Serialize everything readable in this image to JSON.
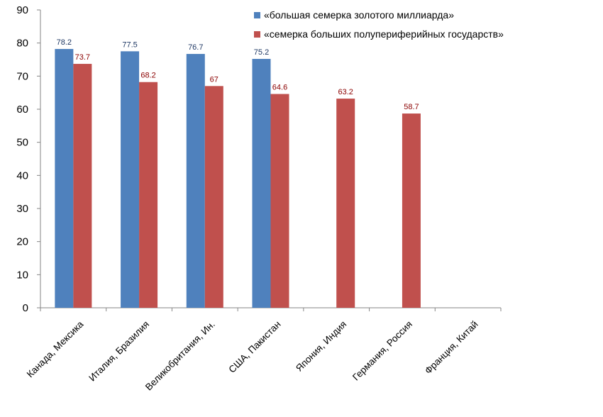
{
  "chart_data": {
    "type": "bar",
    "categories": [
      "Канада, Мексика",
      "Италия, Бразилия",
      "Великобритания, Ин.",
      "США, Пакистан",
      "Япония, Индия",
      "Германия, Россия",
      "Франция, Китай"
    ],
    "series": [
      {
        "name": "«большая семерка золотого миллиарда»",
        "color": "#4F81BD",
        "label_color": "#1F3864",
        "values": [
          78.2,
          77.5,
          76.7,
          75.2,
          null,
          null,
          null
        ]
      },
      {
        "name": "«семерка больших полупериферийных государств»",
        "color": "#C0504D",
        "label_color": "#8B0000",
        "values": [
          73.7,
          68.2,
          67,
          64.6,
          63.2,
          58.7,
          null
        ]
      }
    ],
    "ylim": [
      0,
      90
    ],
    "yticks": [
      0,
      10,
      20,
      30,
      40,
      50,
      60,
      70,
      80,
      90
    ],
    "title": "",
    "xlabel": "",
    "ylabel": "",
    "grid": false,
    "legend": "top-right"
  }
}
